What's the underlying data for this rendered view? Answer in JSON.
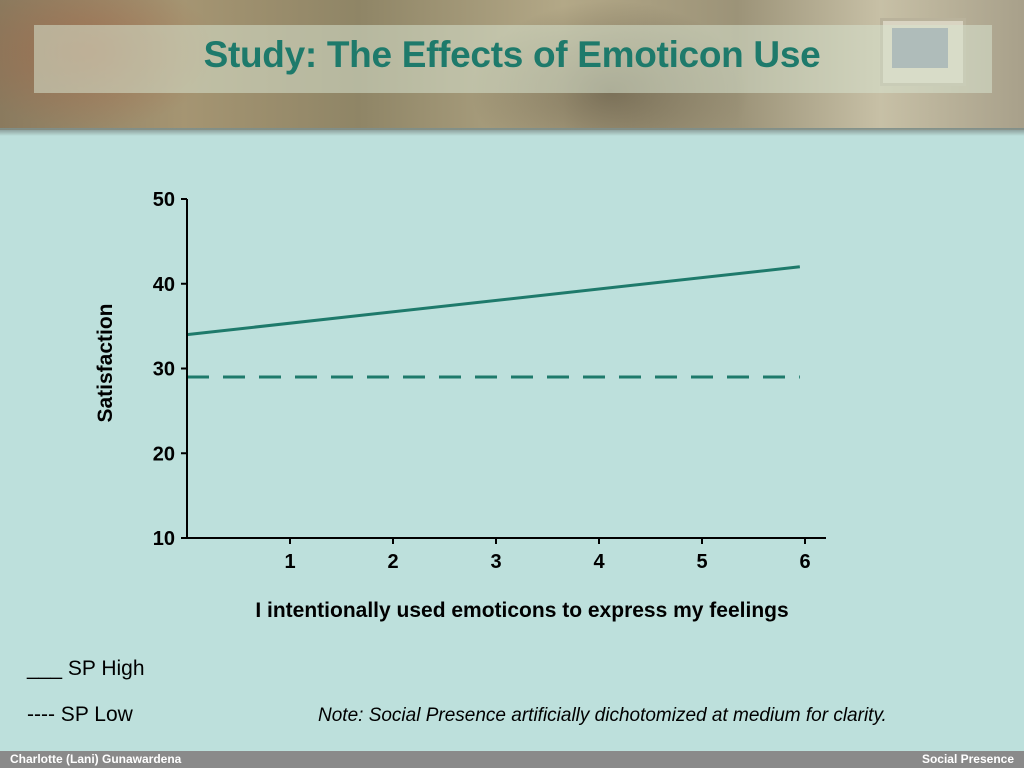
{
  "page": {
    "title": "Study: The Effects of Emoticon Use",
    "legend": {
      "high": "___ SP High",
      "low": "---- SP Low"
    },
    "note": "Note: Social Presence artificially dichotomized at medium for clarity.",
    "footer": {
      "left": "Charlotte (Lani) Gunawardena",
      "right": "Social Presence"
    }
  },
  "colors": {
    "title": "#1e7a6b",
    "series": "#1e7a6b",
    "background": "#bde0dc"
  },
  "chart_data": {
    "type": "line",
    "title": "",
    "xlabel": "I intentionally used emoticons to express my feelings",
    "ylabel": "Satisfaction",
    "x_ticks": [
      1,
      2,
      3,
      4,
      5,
      6
    ],
    "y_ticks": [
      10,
      20,
      30,
      40,
      50
    ],
    "xlim": [
      0,
      6.2
    ],
    "ylim": [
      10,
      50
    ],
    "grid": false,
    "legend_position": "bottom-left",
    "series": [
      {
        "name": "SP High",
        "style": "solid",
        "x": [
          0,
          5.95
        ],
        "y": [
          34,
          42
        ]
      },
      {
        "name": "SP Low",
        "style": "dashed",
        "x": [
          0,
          5.95
        ],
        "y": [
          29,
          29
        ]
      }
    ]
  }
}
